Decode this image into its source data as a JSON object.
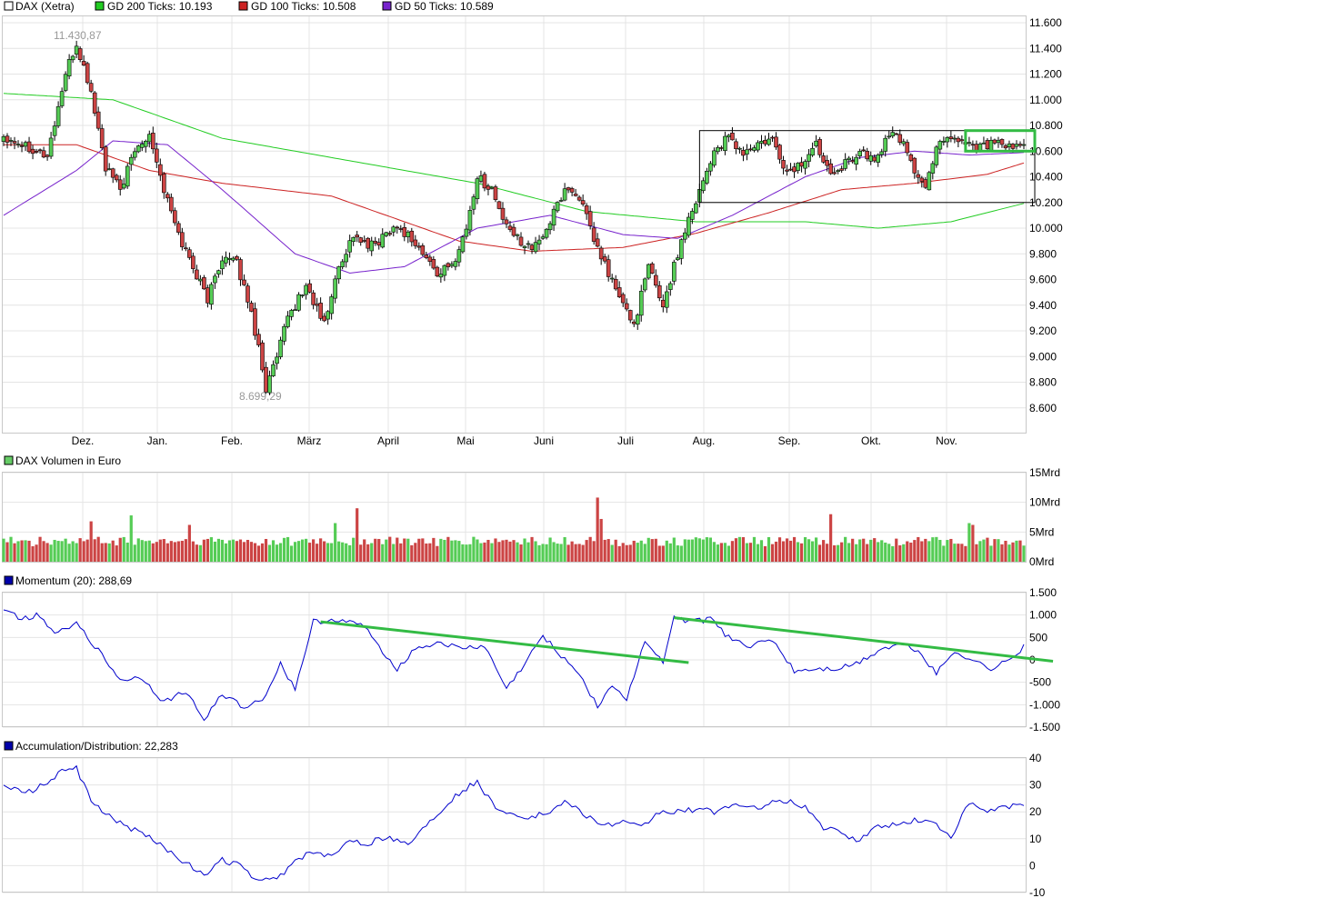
{
  "colors": {
    "up": "#55cc55",
    "down": "#cc4444",
    "gd200": "#22cc22",
    "gd100": "#cc2222",
    "gd50": "#7722cc",
    "momentum": "#0000cc",
    "ad": "#0000cc",
    "trend": "#33bb44",
    "vol_legend": "#66cc66",
    "blue_legend": "#0000aa"
  },
  "chart_data": [
    {
      "type": "candlestick",
      "title": "DAX (Xetra)",
      "legend": [
        {
          "label": "DAX (Xetra)",
          "color": "#ffffff"
        },
        {
          "label": "GD 200 Ticks: 10.193",
          "color": "#22cc22"
        },
        {
          "label": "GD 100 Ticks: 10.508",
          "color": "#cc2222"
        },
        {
          "label": "GD 50 Ticks: 10.589",
          "color": "#7722cc"
        }
      ],
      "ylim": [
        8400,
        11650
      ],
      "y_ticks": [
        "11.600",
        "11.400",
        "11.200",
        "11.000",
        "10.800",
        "10.600",
        "10.400",
        "10.200",
        "10.000",
        "9.800",
        "9.600",
        "9.400",
        "9.200",
        "9.000",
        "8.800",
        "8.600"
      ],
      "x_labels": [
        "Dez.",
        "Jan.",
        "Feb.",
        "März",
        "April",
        "Mai",
        "Juni",
        "Juli",
        "Aug.",
        "Sep.",
        "Okt.",
        "Nov."
      ],
      "annotations": {
        "high": "11.430,87",
        "low": "8.699,29"
      },
      "anchors": [
        [
          0,
          10720
        ],
        [
          6,
          10650
        ],
        [
          12,
          10560
        ],
        [
          17,
          11200
        ],
        [
          20,
          11430
        ],
        [
          24,
          11060
        ],
        [
          28,
          10470
        ],
        [
          32,
          10300
        ],
        [
          36,
          10600
        ],
        [
          40,
          10750
        ],
        [
          44,
          10300
        ],
        [
          48,
          9950
        ],
        [
          52,
          9700
        ],
        [
          56,
          9450
        ],
        [
          60,
          9780
        ],
        [
          64,
          9720
        ],
        [
          67,
          9450
        ],
        [
          70,
          9080
        ],
        [
          72,
          8750
        ],
        [
          75,
          8990
        ],
        [
          78,
          9300
        ],
        [
          83,
          9550
        ],
        [
          88,
          9250
        ],
        [
          92,
          9700
        ],
        [
          96,
          9950
        ],
        [
          100,
          9850
        ],
        [
          103,
          9900
        ],
        [
          107,
          10020
        ],
        [
          111,
          9950
        ],
        [
          115,
          9800
        ],
        [
          119,
          9650
        ],
        [
          123,
          9700
        ],
        [
          127,
          10000
        ],
        [
          130,
          10400
        ],
        [
          134,
          10300
        ],
        [
          138,
          10000
        ],
        [
          142,
          9900
        ],
        [
          146,
          9850
        ],
        [
          150,
          10050
        ],
        [
          154,
          10310
        ],
        [
          158,
          10250
        ],
        [
          162,
          9900
        ],
        [
          166,
          9650
        ],
        [
          170,
          9400
        ],
        [
          173,
          9250
        ],
        [
          177,
          9700
        ],
        [
          181,
          9400
        ],
        [
          184,
          9700
        ],
        [
          187,
          10000
        ],
        [
          191,
          10300
        ],
        [
          195,
          10600
        ],
        [
          199,
          10700
        ],
        [
          203,
          10580
        ],
        [
          207,
          10650
        ],
        [
          211,
          10680
        ],
        [
          215,
          10430
        ],
        [
          219,
          10500
        ],
        [
          223,
          10650
        ],
        [
          227,
          10450
        ],
        [
          231,
          10500
        ],
        [
          235,
          10600
        ],
        [
          239,
          10520
        ],
        [
          243,
          10730
        ],
        [
          247,
          10680
        ],
        [
          250,
          10450
        ],
        [
          253,
          10300
        ],
        [
          256,
          10650
        ],
        [
          259,
          10720
        ],
        [
          263,
          10680
        ],
        [
          267,
          10640
        ],
        [
          272,
          10660
        ],
        [
          276,
          10620
        ],
        [
          280,
          10640
        ]
      ],
      "gd200_anchors": [
        [
          0,
          11050
        ],
        [
          30,
          11000
        ],
        [
          60,
          10700
        ],
        [
          100,
          10500
        ],
        [
          130,
          10350
        ],
        [
          160,
          10130
        ],
        [
          190,
          10050
        ],
        [
          220,
          10050
        ],
        [
          240,
          10000
        ],
        [
          260,
          10050
        ],
        [
          280,
          10193
        ]
      ],
      "gd100_anchors": [
        [
          0,
          10650
        ],
        [
          20,
          10650
        ],
        [
          40,
          10450
        ],
        [
          60,
          10350
        ],
        [
          90,
          10250
        ],
        [
          110,
          10050
        ],
        [
          125,
          9900
        ],
        [
          145,
          9820
        ],
        [
          170,
          9850
        ],
        [
          190,
          9960
        ],
        [
          210,
          10120
        ],
        [
          230,
          10300
        ],
        [
          250,
          10350
        ],
        [
          270,
          10420
        ],
        [
          280,
          10508
        ]
      ],
      "gd50_anchors": [
        [
          0,
          10100
        ],
        [
          20,
          10450
        ],
        [
          30,
          10680
        ],
        [
          45,
          10650
        ],
        [
          60,
          10300
        ],
        [
          80,
          9800
        ],
        [
          95,
          9650
        ],
        [
          110,
          9700
        ],
        [
          130,
          10000
        ],
        [
          150,
          10100
        ],
        [
          170,
          9950
        ],
        [
          185,
          9920
        ],
        [
          200,
          10100
        ],
        [
          220,
          10400
        ],
        [
          235,
          10550
        ],
        [
          250,
          10600
        ],
        [
          265,
          10570
        ],
        [
          280,
          10589
        ]
      ],
      "rect_black": {
        "x_from": 191,
        "x_to": 283,
        "y_from": 10200,
        "y_to": 10760
      },
      "rect_green": {
        "x_from": 264,
        "x_to": 283,
        "y_from": 10600,
        "y_to": 10760
      }
    },
    {
      "type": "bar",
      "title": "DAX Volumen in Euro",
      "ylim": [
        0,
        15
      ],
      "y_ticks": [
        "15Mrd",
        "10Mrd",
        "5Mrd",
        "0Mrd"
      ],
      "base": 3.4,
      "spikes": [
        [
          24,
          6.8
        ],
        [
          35,
          7.8
        ],
        [
          51,
          6.2
        ],
        [
          91,
          6.5
        ],
        [
          97,
          9.0
        ],
        [
          163,
          10.8
        ],
        [
          164,
          7.2
        ],
        [
          227,
          8.0
        ],
        [
          265,
          6.5
        ],
        [
          266,
          6.2
        ]
      ]
    },
    {
      "type": "line",
      "title": "Momentum (20): 288,69",
      "ylim": [
        -1500,
        1500
      ],
      "y_ticks": [
        "1.500",
        "1.000",
        "500",
        "0",
        "-500",
        "-1.000",
        "-1.500"
      ],
      "anchors": [
        [
          0,
          1150
        ],
        [
          5,
          900
        ],
        [
          9,
          1000
        ],
        [
          14,
          650
        ],
        [
          20,
          800
        ],
        [
          26,
          200
        ],
        [
          32,
          -450
        ],
        [
          38,
          -400
        ],
        [
          44,
          -950
        ],
        [
          50,
          -700
        ],
        [
          55,
          -1350
        ],
        [
          60,
          -750
        ],
        [
          66,
          -1050
        ],
        [
          71,
          -900
        ],
        [
          76,
          -100
        ],
        [
          80,
          -650
        ],
        [
          85,
          850
        ],
        [
          91,
          900
        ],
        [
          99,
          750
        ],
        [
          103,
          300
        ],
        [
          108,
          -200
        ],
        [
          113,
          250
        ],
        [
          119,
          400
        ],
        [
          125,
          250
        ],
        [
          132,
          300
        ],
        [
          138,
          -650
        ],
        [
          143,
          -100
        ],
        [
          148,
          550
        ],
        [
          153,
          100
        ],
        [
          158,
          -300
        ],
        [
          163,
          -1050
        ],
        [
          167,
          -550
        ],
        [
          171,
          -900
        ],
        [
          176,
          450
        ],
        [
          181,
          -100
        ],
        [
          184,
          950
        ],
        [
          189,
          850
        ],
        [
          194,
          900
        ],
        [
          199,
          500
        ],
        [
          205,
          300
        ],
        [
          211,
          450
        ],
        [
          217,
          -250
        ],
        [
          223,
          -200
        ],
        [
          229,
          -200
        ],
        [
          235,
          -50
        ],
        [
          241,
          250
        ],
        [
          247,
          350
        ],
        [
          251,
          200
        ],
        [
          256,
          -300
        ],
        [
          261,
          200
        ],
        [
          266,
          0
        ],
        [
          271,
          -200
        ],
        [
          276,
          0
        ],
        [
          280,
          288
        ]
      ],
      "trendlines": [
        {
          "from": [
            87,
            850
          ],
          "to": [
            188,
            -60
          ]
        },
        {
          "from": [
            184,
            940
          ],
          "to": [
            288,
            -30
          ]
        }
      ]
    },
    {
      "type": "line",
      "title": "Accumulation/Distribution: 22,283",
      "ylim": [
        -10,
        40
      ],
      "y_ticks": [
        "40",
        "30",
        "20",
        "10",
        "0",
        "-10"
      ],
      "anchors": [
        [
          0,
          30
        ],
        [
          6,
          27
        ],
        [
          11,
          30
        ],
        [
          16,
          35
        ],
        [
          20,
          36
        ],
        [
          24,
          24
        ],
        [
          30,
          17
        ],
        [
          38,
          12
        ],
        [
          44,
          7
        ],
        [
          50,
          1
        ],
        [
          55,
          -4
        ],
        [
          60,
          2
        ],
        [
          65,
          0
        ],
        [
          70,
          -6
        ],
        [
          75,
          -5
        ],
        [
          80,
          2
        ],
        [
          85,
          5
        ],
        [
          90,
          3
        ],
        [
          95,
          10
        ],
        [
          100,
          8
        ],
        [
          105,
          11
        ],
        [
          111,
          8
        ],
        [
          116,
          15
        ],
        [
          121,
          22
        ],
        [
          126,
          28
        ],
        [
          130,
          31
        ],
        [
          135,
          22
        ],
        [
          140,
          19
        ],
        [
          145,
          18
        ],
        [
          150,
          20
        ],
        [
          155,
          24
        ],
        [
          160,
          18
        ],
        [
          165,
          15
        ],
        [
          170,
          16
        ],
        [
          175,
          14
        ],
        [
          180,
          20
        ],
        [
          185,
          20
        ],
        [
          190,
          21
        ],
        [
          195,
          20
        ],
        [
          200,
          23
        ],
        [
          205,
          21
        ],
        [
          210,
          23
        ],
        [
          215,
          24
        ],
        [
          220,
          22
        ],
        [
          225,
          14
        ],
        [
          230,
          12
        ],
        [
          235,
          9
        ],
        [
          240,
          15
        ],
        [
          245,
          15
        ],
        [
          250,
          17
        ],
        [
          255,
          16
        ],
        [
          260,
          11
        ],
        [
          265,
          23
        ],
        [
          270,
          20
        ],
        [
          275,
          22
        ],
        [
          280,
          22.283
        ]
      ]
    }
  ]
}
